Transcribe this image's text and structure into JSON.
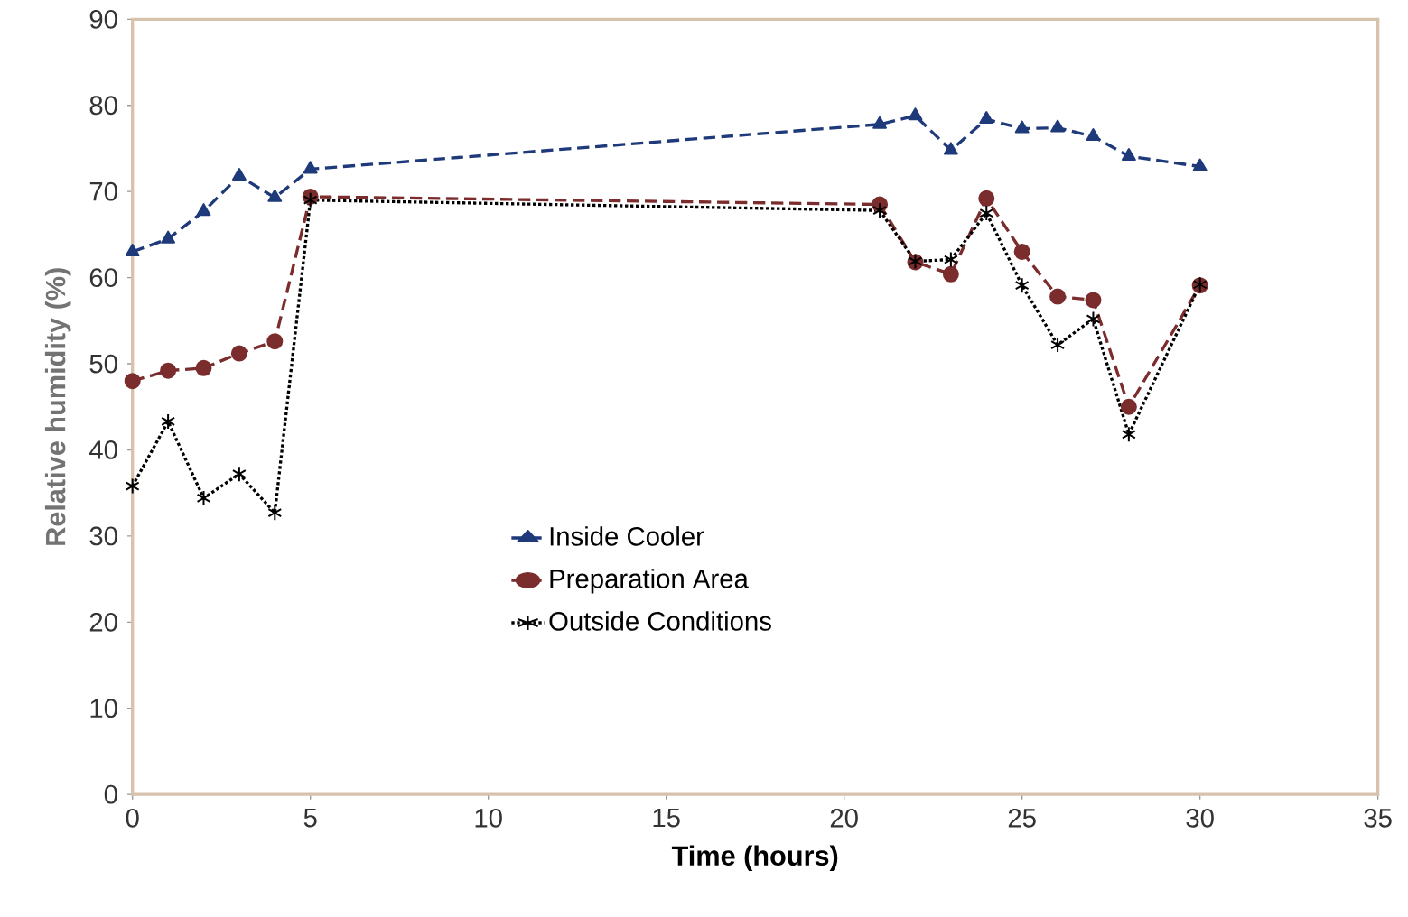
{
  "chart_data": {
    "type": "line",
    "xlabel": "Time (hours)",
    "ylabel": "Relative humidity (%)",
    "xlim": [
      0,
      35
    ],
    "ylim": [
      0,
      90
    ],
    "xticks": [
      0,
      5,
      10,
      15,
      20,
      25,
      30,
      35
    ],
    "yticks": [
      0,
      10,
      20,
      30,
      40,
      50,
      60,
      70,
      80,
      90
    ],
    "grid": false,
    "legend": "center",
    "series": [
      {
        "name": "Inside Cooler",
        "color": "#1f3a7a",
        "marker": "triangle",
        "line_style": "dashed",
        "x": [
          0,
          1,
          2,
          3,
          4,
          5,
          21,
          22,
          23,
          24,
          25,
          26,
          27,
          28,
          30
        ],
        "values": [
          63,
          64.5,
          67.7,
          71.8,
          69.3,
          72.6,
          77.8,
          78.8,
          74.8,
          78.4,
          77.3,
          77.4,
          76.4,
          74.1,
          72.9
        ]
      },
      {
        "name": "Preparation Area",
        "color": "#7b2c2c",
        "marker": "circle",
        "line_style": "dashed",
        "x": [
          0,
          1,
          2,
          3,
          4,
          5,
          21,
          22,
          23,
          24,
          25,
          26,
          27,
          28,
          30
        ],
        "values": [
          48,
          49.2,
          49.5,
          51.2,
          52.6,
          69.4,
          68.5,
          61.8,
          60.4,
          69.2,
          63,
          57.8,
          57.4,
          45,
          59.1
        ]
      },
      {
        "name": "Outside Conditions",
        "color": "#000000",
        "marker": "cross",
        "line_style": "dotted",
        "x": [
          0,
          1,
          2,
          3,
          4,
          5,
          21,
          22,
          23,
          24,
          25,
          26,
          27,
          28,
          30
        ],
        "values": [
          35.8,
          43.3,
          34.4,
          37.2,
          32.7,
          69,
          67.8,
          61.9,
          62.1,
          67.5,
          59.1,
          52.2,
          55.2,
          41.8,
          59.2
        ]
      }
    ]
  }
}
